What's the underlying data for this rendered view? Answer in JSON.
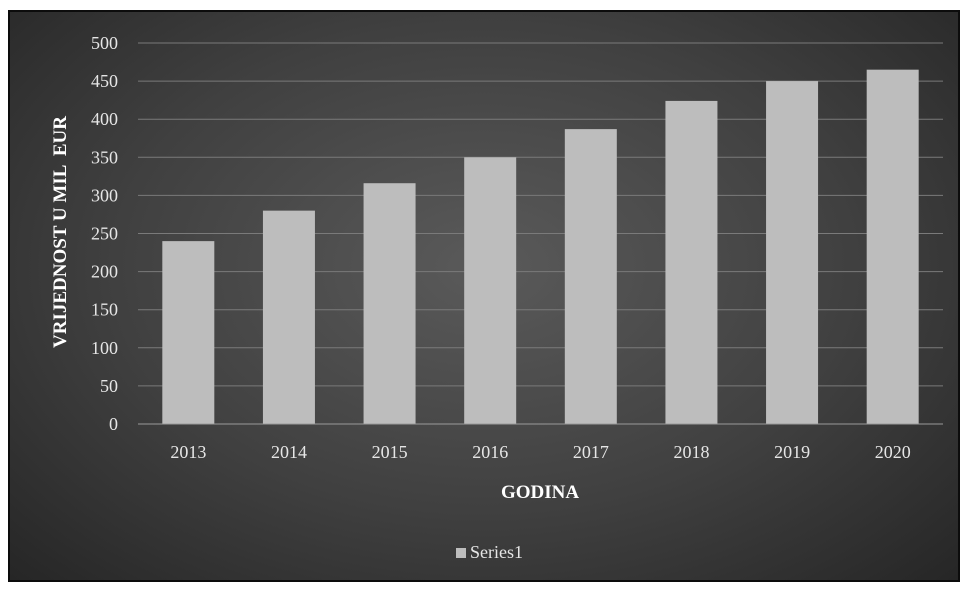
{
  "chart_data": {
    "type": "bar",
    "categories": [
      "2013",
      "2014",
      "2015",
      "2016",
      "2017",
      "2018",
      "2019",
      "2020"
    ],
    "series": [
      {
        "name": "Series1",
        "values": [
          240,
          280,
          316,
          350,
          387,
          424,
          450,
          465
        ],
        "color": "#bdbdbd"
      }
    ],
    "ylabel": "VRIJEDNOST U MIL  EUR",
    "xlabel": "GODINA",
    "ylim": [
      0,
      500
    ],
    "yticks": [
      "0",
      "50",
      "100",
      "150",
      "200",
      "250",
      "300",
      "350",
      "400",
      "450",
      "500"
    ],
    "grid": true,
    "legend": "bottom"
  },
  "colors": {
    "panel_center": "#5a5a5a",
    "panel_edge": "#262626",
    "bar": "#bdbdbd",
    "gridline": "#7a7a7a",
    "text": "#e6e6e6"
  }
}
